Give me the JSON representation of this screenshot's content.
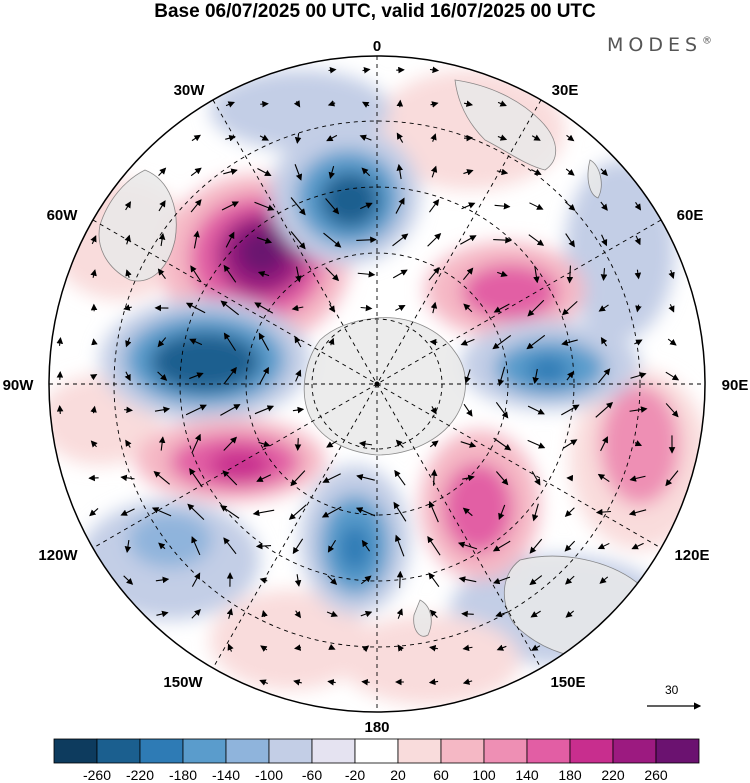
{
  "title": "Base 06/07/2025 00 UTC, valid 16/07/2025 00 UTC",
  "brand": "MODES",
  "brand_mark": "®",
  "meridian_labels": {
    "m0": "0",
    "m30e": "30E",
    "m60e": "60E",
    "m90e": "90E",
    "m120e": "120E",
    "m150e": "150E",
    "m180": "180",
    "m150w": "150W",
    "m120w": "120W",
    "m90w": "90W",
    "m60w": "60W",
    "m30w": "30W"
  },
  "vector_reference": "30",
  "colorbar": {
    "colors": [
      "#0d3b5e",
      "#1b5f8f",
      "#2e7bb5",
      "#5a9ccc",
      "#8fb4dc",
      "#c3cee6",
      "#e5e3f1",
      "#ffffff",
      "#f9dcdc",
      "#f5b8c5",
      "#ee8fb4",
      "#e25ea4",
      "#c82e8e",
      "#9c1a80",
      "#6b1270"
    ],
    "labels": [
      "-260",
      "-220",
      "-180",
      "-140",
      "-100",
      "-60",
      "-20",
      "20",
      "60",
      "100",
      "140",
      "180",
      "220",
      "260"
    ]
  },
  "anomaly_colors": {
    "negative_strong": "#1b5f8f",
    "negative_mid": "#5a9ccc",
    "negative_weak": "#c3cee6",
    "positive_weak": "#f9dcdc",
    "positive_mid": "#ee8fb4",
    "positive_strong": "#9c1a80",
    "land": "#e9e9e9"
  }
}
